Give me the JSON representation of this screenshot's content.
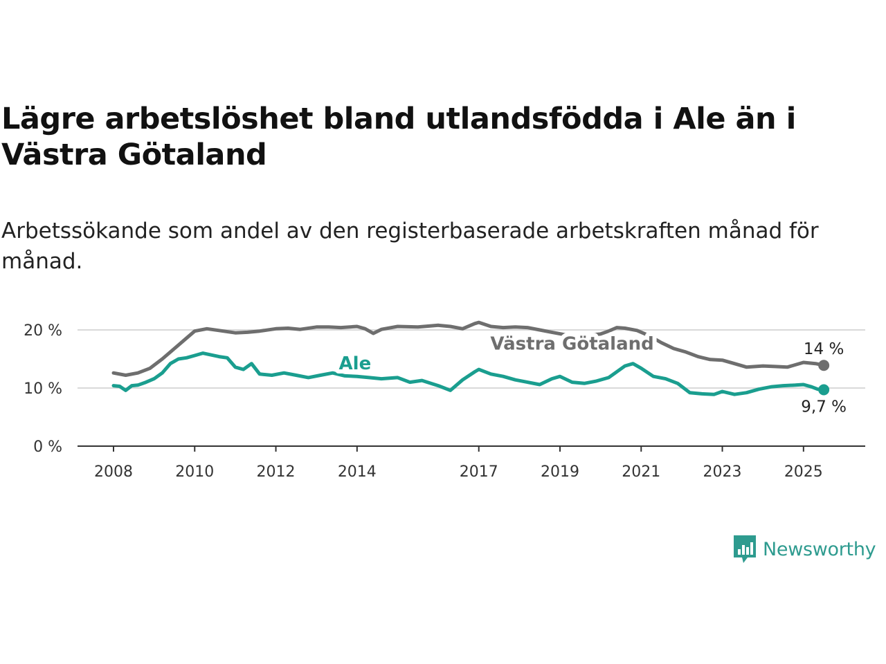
{
  "title": "Lägre arbetslöshet bland utlandsfödda i Ale än i Västra Götaland",
  "subtitle": "Arbetssökande som andel av den registerbaserade arbetskraften månad för månad.",
  "brand": {
    "name": "Newsworthy",
    "icon": "newsworthy-logo-icon",
    "color": "#2e9b8f"
  },
  "chart_data": {
    "type": "line",
    "title": "Lägre arbetslöshet bland utlandsfödda i Ale än i Västra Götaland",
    "subtitle": "Arbetssökande som andel av den registerbaserade arbetskraften månad för månad.",
    "xlabel": "",
    "ylabel": "",
    "xlim": [
      2008.0,
      2025.6
    ],
    "ylim": [
      0,
      20
    ],
    "y_ticks": [
      0,
      10,
      20
    ],
    "y_tick_labels": [
      "0 %",
      "10 %",
      "20 %"
    ],
    "x_ticks": [
      2008,
      2010,
      2012,
      2014,
      2017,
      2019,
      2021,
      2023,
      2025
    ],
    "x_tick_labels": [
      "2008",
      "2010",
      "2012",
      "2014",
      "2017",
      "2019",
      "2021",
      "2023",
      "2025"
    ],
    "grid": "horizontal",
    "legend": "none",
    "series": [
      {
        "name": "Västra Götaland",
        "color": "#6e6e6e",
        "end_label": "14 %",
        "points": [
          [
            2008.0,
            12.6
          ],
          [
            2008.3,
            12.2
          ],
          [
            2008.6,
            12.6
          ],
          [
            2008.9,
            13.4
          ],
          [
            2009.2,
            15.0
          ],
          [
            2009.5,
            16.8
          ],
          [
            2009.8,
            18.6
          ],
          [
            2010.0,
            19.8
          ],
          [
            2010.3,
            20.2
          ],
          [
            2010.6,
            19.9
          ],
          [
            2011.0,
            19.5
          ],
          [
            2011.3,
            19.6
          ],
          [
            2011.6,
            19.8
          ],
          [
            2012.0,
            20.2
          ],
          [
            2012.3,
            20.3
          ],
          [
            2012.6,
            20.1
          ],
          [
            2013.0,
            20.5
          ],
          [
            2013.3,
            20.5
          ],
          [
            2013.6,
            20.4
          ],
          [
            2014.0,
            20.6
          ],
          [
            2014.2,
            20.2
          ],
          [
            2014.4,
            19.4
          ],
          [
            2014.6,
            20.1
          ],
          [
            2015.0,
            20.6
          ],
          [
            2015.5,
            20.5
          ],
          [
            2016.0,
            20.8
          ],
          [
            2016.3,
            20.6
          ],
          [
            2016.6,
            20.2
          ],
          [
            2016.9,
            21.1
          ],
          [
            2017.0,
            21.3
          ],
          [
            2017.3,
            20.6
          ],
          [
            2017.6,
            20.4
          ],
          [
            2017.9,
            20.5
          ],
          [
            2018.2,
            20.4
          ],
          [
            2018.5,
            20.0
          ],
          [
            2018.8,
            19.6
          ],
          [
            2019.1,
            19.2
          ],
          [
            2019.4,
            19.0
          ],
          [
            2019.7,
            19.1
          ],
          [
            2020.0,
            19.3
          ],
          [
            2020.2,
            19.8
          ],
          [
            2020.4,
            20.4
          ],
          [
            2020.6,
            20.3
          ],
          [
            2020.9,
            19.9
          ],
          [
            2021.2,
            19.0
          ],
          [
            2021.5,
            17.8
          ],
          [
            2021.8,
            16.8
          ],
          [
            2022.1,
            16.2
          ],
          [
            2022.4,
            15.4
          ],
          [
            2022.7,
            14.9
          ],
          [
            2023.0,
            14.8
          ],
          [
            2023.3,
            14.2
          ],
          [
            2023.6,
            13.6
          ],
          [
            2024.0,
            13.8
          ],
          [
            2024.3,
            13.7
          ],
          [
            2024.6,
            13.6
          ],
          [
            2025.0,
            14.4
          ],
          [
            2025.3,
            14.2
          ],
          [
            2025.5,
            13.9
          ]
        ]
      },
      {
        "name": "Ale",
        "color": "#1a9e8f",
        "end_label": "9,7 %",
        "points": [
          [
            2008.0,
            10.4
          ],
          [
            2008.15,
            10.3
          ],
          [
            2008.3,
            9.6
          ],
          [
            2008.45,
            10.4
          ],
          [
            2008.6,
            10.5
          ],
          [
            2008.8,
            11.0
          ],
          [
            2009.0,
            11.6
          ],
          [
            2009.2,
            12.6
          ],
          [
            2009.4,
            14.2
          ],
          [
            2009.6,
            15.0
          ],
          [
            2009.8,
            15.2
          ],
          [
            2010.0,
            15.6
          ],
          [
            2010.2,
            16.0
          ],
          [
            2010.4,
            15.7
          ],
          [
            2010.6,
            15.4
          ],
          [
            2010.8,
            15.2
          ],
          [
            2011.0,
            13.6
          ],
          [
            2011.2,
            13.2
          ],
          [
            2011.4,
            14.2
          ],
          [
            2011.6,
            12.4
          ],
          [
            2011.9,
            12.2
          ],
          [
            2012.2,
            12.6
          ],
          [
            2012.5,
            12.2
          ],
          [
            2012.8,
            11.8
          ],
          [
            2013.1,
            12.2
          ],
          [
            2013.4,
            12.6
          ],
          [
            2013.7,
            12.1
          ],
          [
            2014.0,
            12.0
          ],
          [
            2014.3,
            11.8
          ],
          [
            2014.6,
            11.6
          ],
          [
            2015.0,
            11.8
          ],
          [
            2015.3,
            11.0
          ],
          [
            2015.6,
            11.3
          ],
          [
            2016.0,
            10.4
          ],
          [
            2016.3,
            9.6
          ],
          [
            2016.6,
            11.4
          ],
          [
            2016.9,
            12.8
          ],
          [
            2017.0,
            13.2
          ],
          [
            2017.3,
            12.4
          ],
          [
            2017.6,
            12.0
          ],
          [
            2017.9,
            11.4
          ],
          [
            2018.2,
            11.0
          ],
          [
            2018.5,
            10.6
          ],
          [
            2018.8,
            11.6
          ],
          [
            2019.0,
            12.0
          ],
          [
            2019.3,
            11.0
          ],
          [
            2019.6,
            10.8
          ],
          [
            2019.9,
            11.2
          ],
          [
            2020.2,
            11.8
          ],
          [
            2020.4,
            12.8
          ],
          [
            2020.6,
            13.8
          ],
          [
            2020.8,
            14.2
          ],
          [
            2021.0,
            13.4
          ],
          [
            2021.3,
            12.0
          ],
          [
            2021.6,
            11.6
          ],
          [
            2021.9,
            10.8
          ],
          [
            2022.2,
            9.2
          ],
          [
            2022.5,
            9.0
          ],
          [
            2022.8,
            8.9
          ],
          [
            2023.0,
            9.4
          ],
          [
            2023.3,
            8.9
          ],
          [
            2023.6,
            9.2
          ],
          [
            2023.9,
            9.8
          ],
          [
            2024.2,
            10.2
          ],
          [
            2024.5,
            10.4
          ],
          [
            2024.8,
            10.5
          ],
          [
            2025.0,
            10.6
          ],
          [
            2025.2,
            10.2
          ],
          [
            2025.35,
            9.8
          ],
          [
            2025.5,
            9.7
          ]
        ]
      }
    ],
    "annotations": [
      {
        "series": "Ale",
        "text": "Ale",
        "color": "#1a9e8f"
      },
      {
        "series": "Västra Götaland",
        "text": "Västra Götaland",
        "color": "#6e6e6e"
      }
    ]
  }
}
